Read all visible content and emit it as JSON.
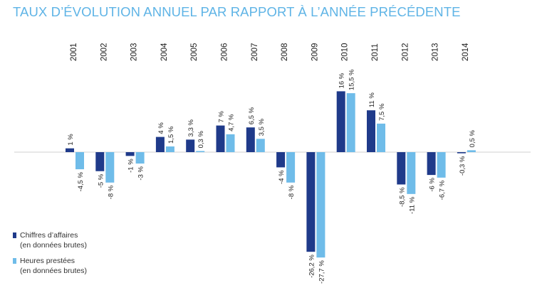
{
  "title": "TAUX D’ÉVOLUTION ANNUEL PAR RAPPORT À L’ANNÉE PRÉCÉDENTE",
  "colors": {
    "series1": "#1f3a8a",
    "series2": "#6fbce9",
    "title": "#5fb4e6",
    "axis": "#d0d0d0"
  },
  "chart_data": {
    "type": "bar",
    "categories": [
      "2001",
      "2002",
      "2003",
      "2004",
      "2005",
      "2006",
      "2007",
      "2008",
      "2009",
      "2010",
      "2011",
      "2012",
      "2013",
      "2014"
    ],
    "series": [
      {
        "name": "Chiffres d’affaires (en données brutes)",
        "values": [
          1,
          -5,
          -1,
          4,
          3.3,
          7,
          6.5,
          -4,
          -26.2,
          16,
          11,
          -8.5,
          -6,
          -0.3
        ],
        "labels": [
          "1 %",
          "-5 %",
          "-1 %",
          "4 %",
          "3,3 %",
          "7 %",
          "6,5 %",
          "-4 %",
          "-26,2 %",
          "16 %",
          "11 %",
          "-8,5 %",
          "-6 %",
          "-0,3 %"
        ]
      },
      {
        "name": "Heures prestées (en données brutes)",
        "values": [
          -4.5,
          -8,
          -3,
          1.5,
          0.3,
          4.7,
          3.5,
          -8,
          -27.7,
          15.5,
          7.5,
          -11,
          -6.7,
          0.5
        ],
        "labels": [
          "-4,5 %",
          "-8 %",
          "-3 %",
          "1,5 %",
          "0,3 %",
          "4,7 %",
          "3,5 %",
          "-8 %",
          "-27,7 %",
          "15,5 %",
          "7,5 %",
          "-11 %",
          "-6,7 %",
          "0,5 %"
        ]
      }
    ],
    "grid": false,
    "legend_position": "bottom-left"
  },
  "legend": [
    {
      "line1": "Chiffres d’affaires",
      "line2": "(en données brutes)"
    },
    {
      "line1": "Heures prestées",
      "line2": "(en données brutes)"
    }
  ]
}
